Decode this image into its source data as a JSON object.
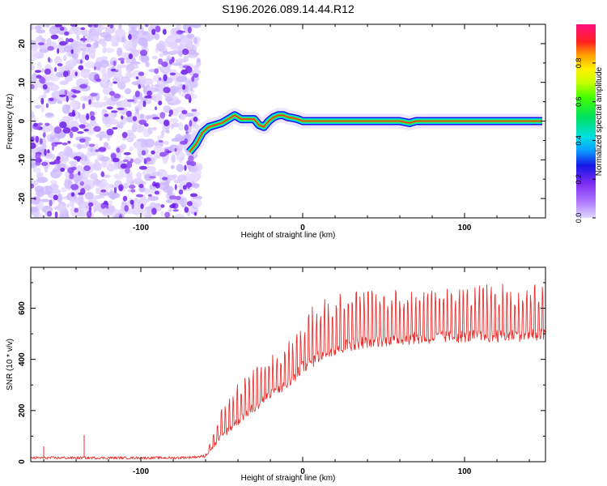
{
  "title": "S196.2026.089.14.44.R12",
  "chart_data": [
    {
      "type": "heatmap",
      "panel": "top",
      "xlabel": "Height of straight line (km)",
      "ylabel": "Frequency (Hz)",
      "xlim": [
        -168,
        150
      ],
      "ylim": [
        -25,
        25
      ],
      "x_ticks": [
        -100,
        0,
        100
      ],
      "y_ticks": [
        20,
        10,
        0,
        -10,
        -20
      ],
      "x_tick_labels": [
        "-100",
        "0",
        "100"
      ],
      "y_tick_labels": [
        "20",
        "10",
        "0",
        "-10",
        "-20"
      ],
      "noise_region_x": [
        -168,
        -66
      ],
      "ridge": {
        "x": [
          -70,
          -66,
          -62,
          -58,
          -54,
          -50,
          -46,
          -42,
          -38,
          -34,
          -30,
          -27,
          -24,
          -21,
          -18,
          -15,
          -12,
          -9,
          -6,
          -3,
          0,
          20,
          40,
          60,
          66,
          70,
          80,
          100,
          120,
          140,
          148
        ],
        "freq_hz": [
          -8,
          -6,
          -3,
          -1.5,
          -1,
          -0.5,
          0.5,
          1.5,
          0.5,
          0.5,
          0.5,
          -1,
          -1.5,
          0,
          1,
          1.5,
          1.5,
          1,
          0.8,
          0.5,
          0,
          0,
          0,
          0,
          -0.5,
          0,
          0,
          0,
          0,
          0,
          0
        ]
      },
      "colorbar": {
        "label": "Normalized spectral amplitude",
        "range": [
          0,
          1
        ],
        "ticks": [
          0.0,
          0.2,
          0.4,
          0.6,
          0.8
        ],
        "tick_labels": [
          "0.0",
          "0.2",
          "0.4",
          "0.6",
          "0.8"
        ]
      }
    },
    {
      "type": "line",
      "panel": "bottom",
      "xlabel": "Height of straight line (km)",
      "ylabel": "SNR (10 * v/v)",
      "xlim": [
        -168,
        150
      ],
      "ylim": [
        0,
        760
      ],
      "x_ticks": [
        -100,
        0,
        100
      ],
      "y_ticks": [
        0,
        200,
        400,
        600
      ],
      "x_tick_labels": [
        "-100",
        "0",
        "100"
      ],
      "y_tick_labels": [
        "0",
        "200",
        "400",
        "600"
      ],
      "series": [
        {
          "name": "SNR",
          "color": "#e8312f",
          "x": [
            -168,
            -140,
            -120,
            -100,
            -80,
            -70,
            -60,
            -55,
            -50,
            -45,
            -40,
            -35,
            -30,
            -25,
            -20,
            -15,
            -10,
            -5,
            0,
            5,
            10,
            15,
            20,
            25,
            30,
            40,
            50,
            60,
            70,
            80,
            90,
            100,
            110,
            120,
            130,
            140,
            150
          ],
          "baseline": [
            15,
            15,
            15,
            15,
            15,
            17,
            22,
            60,
            100,
            130,
            160,
            190,
            210,
            240,
            260,
            280,
            300,
            330,
            370,
            390,
            410,
            430,
            440,
            450,
            460,
            470,
            475,
            480,
            482,
            485,
            488,
            490,
            490,
            492,
            493,
            495,
            495
          ],
          "peaks": [
            18,
            20,
            25,
            18,
            20,
            24,
            35,
            120,
            210,
            260,
            310,
            330,
            370,
            390,
            420,
            430,
            470,
            500,
            560,
            600,
            630,
            650,
            660,
            665,
            670,
            670,
            672,
            672,
            675,
            675,
            678,
            680,
            690,
            700,
            690,
            690,
            700
          ]
        }
      ],
      "annotations": [
        {
          "x": -135,
          "y": 105,
          "text": ""
        }
      ]
    }
  ],
  "colors": {
    "noise_light": "#d4c2ff",
    "noise_dark": "#7a2af0",
    "line": "#e8312f"
  }
}
